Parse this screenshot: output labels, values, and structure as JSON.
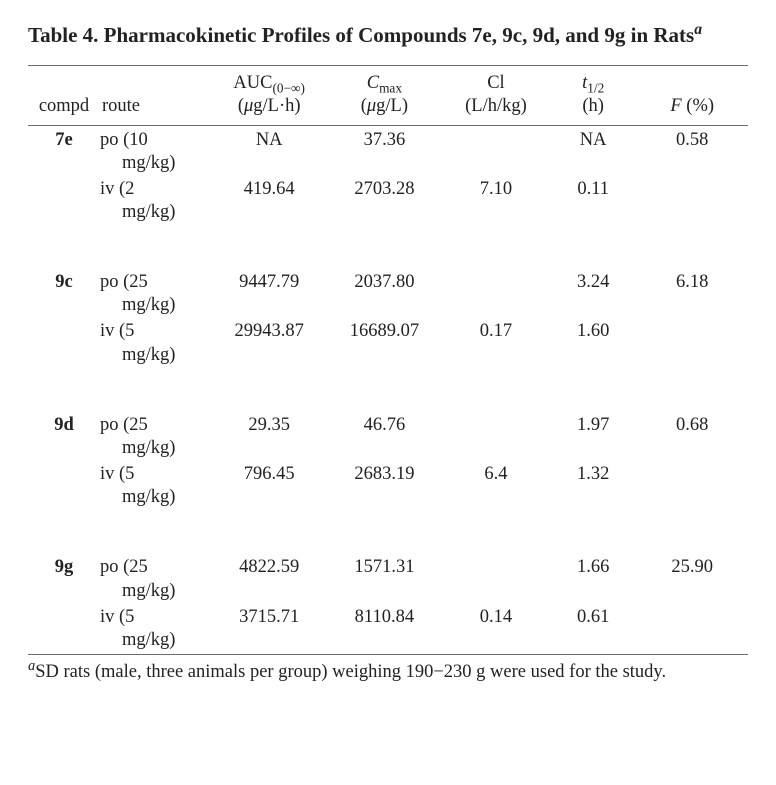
{
  "title_main": "Table 4. Pharmacokinetic Profiles of Compounds 7e, 9c, 9d, and 9g in Rats",
  "title_sup": "a",
  "columns": {
    "compd": "compd",
    "route": "route",
    "auc_top": "AUC",
    "auc_sub": "(0−∞)",
    "auc_unit_pre": "(",
    "auc_unit_mid": "g/L·h)",
    "cmax_top_pre": "C",
    "cmax_top_sub": "max",
    "cmax_unit_pre": "(",
    "cmax_unit_mid": "g/L)",
    "cl_top": "Cl",
    "cl_unit": "(L/h/kg)",
    "thalf_t": "t",
    "thalf_sub": "1/2",
    "thalf_unit": "(h)",
    "f_head_pre": "F",
    "f_head_post": " (%)"
  },
  "micro": "μ",
  "groups": [
    {
      "compd": "7e",
      "rows": [
        {
          "route_prefix": "po (10",
          "dose_line": "mg/kg)",
          "auc": "NA",
          "cmax": "37.36",
          "cl": "",
          "thalf": "NA",
          "f": "0.58"
        },
        {
          "route_prefix": "iv (2",
          "dose_line": "mg/kg)",
          "auc": "419.64",
          "cmax": "2703.28",
          "cl": "7.10",
          "thalf": "0.11",
          "f": ""
        }
      ]
    },
    {
      "compd": "9c",
      "rows": [
        {
          "route_prefix": "po (25",
          "dose_line": "mg/kg)",
          "auc": "9447.79",
          "cmax": "2037.80",
          "cl": "",
          "thalf": "3.24",
          "f": "6.18"
        },
        {
          "route_prefix": "iv (5",
          "dose_line": "mg/kg)",
          "auc": "29943.87",
          "cmax": "16689.07",
          "cl": "0.17",
          "thalf": "1.60",
          "f": ""
        }
      ]
    },
    {
      "compd": "9d",
      "rows": [
        {
          "route_prefix": "po (25",
          "dose_line": "mg/kg)",
          "auc": "29.35",
          "cmax": "46.76",
          "cl": "",
          "thalf": "1.97",
          "f": "0.68"
        },
        {
          "route_prefix": "iv (5",
          "dose_line": "mg/kg)",
          "auc": "796.45",
          "cmax": "2683.19",
          "cl": "6.4",
          "thalf": "1.32",
          "f": ""
        }
      ]
    },
    {
      "compd": "9g",
      "rows": [
        {
          "route_prefix": "po (25",
          "dose_line": "mg/kg)",
          "auc": "4822.59",
          "cmax": "1571.31",
          "cl": "",
          "thalf": "1.66",
          "f": "25.90"
        },
        {
          "route_prefix": "iv (5",
          "dose_line": "mg/kg)",
          "auc": "3715.71",
          "cmax": "8110.84",
          "cl": "0.14",
          "thalf": "0.61",
          "f": ""
        }
      ]
    }
  ],
  "footnote_sup": "a",
  "footnote_text": "SD rats (male, three animals per group) weighing 190−230 g were used for the study."
}
